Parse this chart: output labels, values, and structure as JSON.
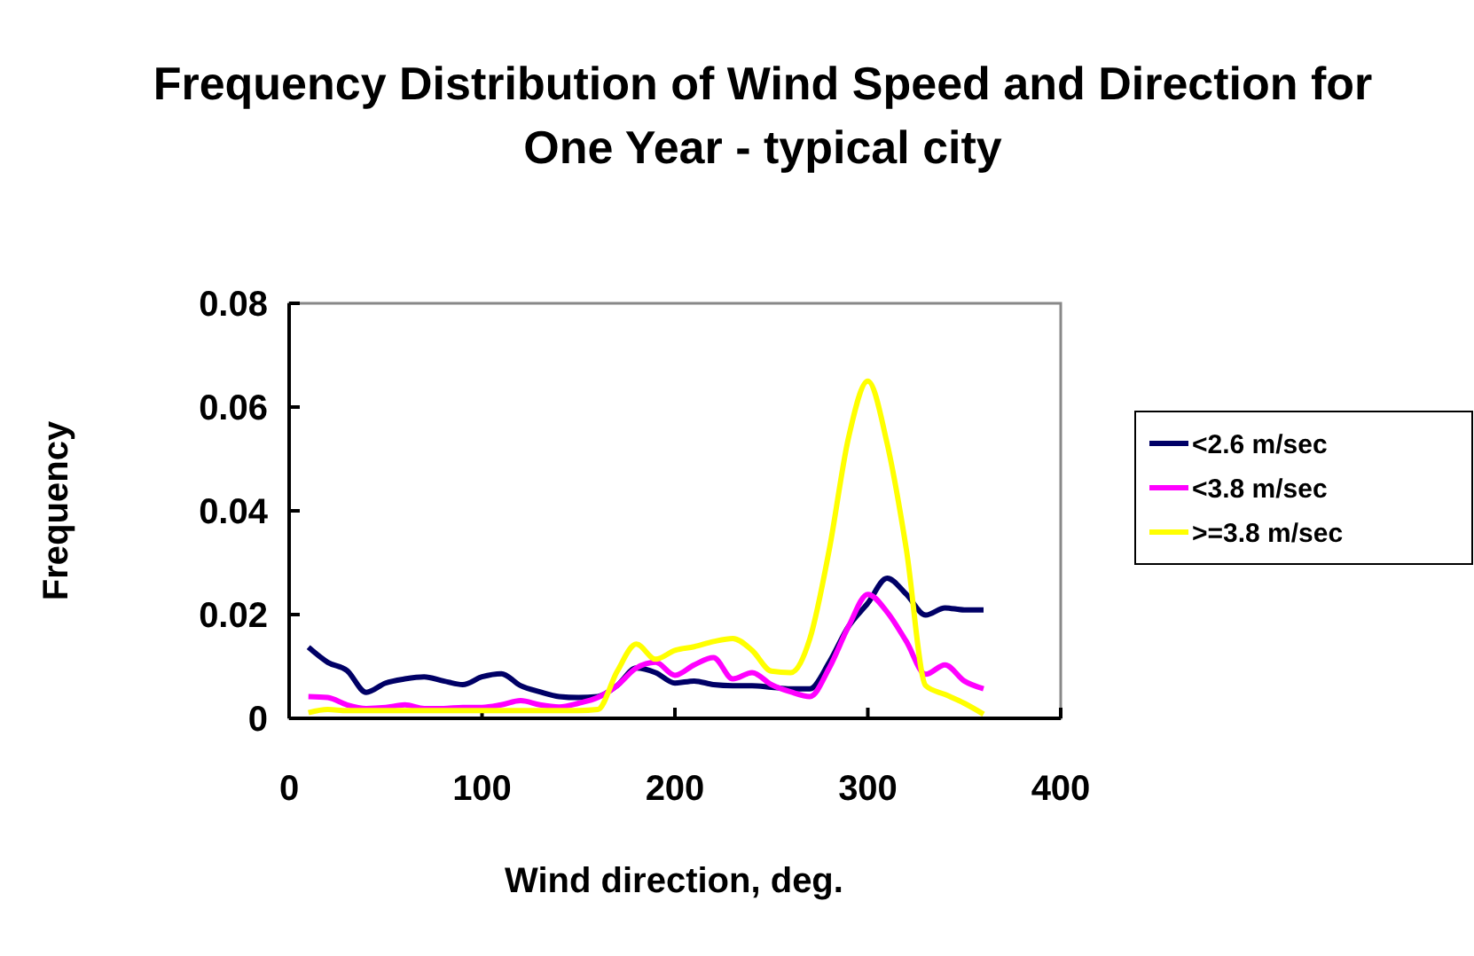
{
  "chart_data": {
    "type": "line",
    "title": "Frequency Distribution of Wind Speed and Direction for One Year - typical city",
    "xlabel": "Wind direction, deg.",
    "ylabel": "Frequency",
    "x": [
      10,
      20,
      30,
      40,
      50,
      60,
      70,
      80,
      90,
      100,
      110,
      120,
      130,
      140,
      150,
      160,
      170,
      180,
      190,
      200,
      210,
      220,
      230,
      240,
      250,
      260,
      270,
      280,
      290,
      300,
      310,
      320,
      330,
      340,
      350,
      360
    ],
    "series": [
      {
        "name": "<2.6 m/sec",
        "color": "#000066",
        "values": [
          0.0137,
          0.0108,
          0.0092,
          0.005,
          0.0068,
          0.0076,
          0.008,
          0.0072,
          0.0065,
          0.008,
          0.0086,
          0.0063,
          0.0051,
          0.0042,
          0.004,
          0.0042,
          0.0063,
          0.0097,
          0.0088,
          0.0068,
          0.0072,
          0.0065,
          0.0063,
          0.0063,
          0.006,
          0.0057,
          0.0057,
          0.0108,
          0.0177,
          0.0222,
          0.027,
          0.0239,
          0.0199,
          0.0213,
          0.0209,
          0.0209
        ]
      },
      {
        "name": "<3.8 m/sec",
        "color": "#ff00ff",
        "values": [
          0.0042,
          0.004,
          0.0026,
          0.0019,
          0.0021,
          0.0026,
          0.0019,
          0.0019,
          0.0021,
          0.0021,
          0.0026,
          0.0034,
          0.0026,
          0.0022,
          0.0029,
          0.004,
          0.0063,
          0.0097,
          0.0108,
          0.0083,
          0.0103,
          0.0117,
          0.0076,
          0.0088,
          0.0065,
          0.0051,
          0.0042,
          0.0097,
          0.0177,
          0.0239,
          0.0205,
          0.0148,
          0.0085,
          0.0103,
          0.0072,
          0.0057
        ]
      },
      {
        "name": ">=3.8 m/sec",
        "color": "#ffff00",
        "values": [
          0.0011,
          0.0017,
          0.0015,
          0.0015,
          0.0015,
          0.0015,
          0.0015,
          0.0015,
          0.0015,
          0.0015,
          0.0015,
          0.0015,
          0.0015,
          0.0015,
          0.0015,
          0.0017,
          0.009,
          0.0143,
          0.0114,
          0.0131,
          0.0138,
          0.0148,
          0.0154,
          0.0131,
          0.0091,
          0.0088,
          0.0154,
          0.0325,
          0.0541,
          0.065,
          0.053,
          0.0325,
          0.0063,
          0.0046,
          0.0029,
          0.0008
        ]
      }
    ],
    "xlim": [
      0,
      400
    ],
    "xticks": [
      0,
      100,
      200,
      300,
      400
    ],
    "ylim": [
      0,
      0.08
    ],
    "yticks": [
      0,
      0.02,
      0.04,
      0.06,
      0.08
    ],
    "legend": "right",
    "grid": false,
    "marker": "none",
    "line_style": "solid"
  }
}
